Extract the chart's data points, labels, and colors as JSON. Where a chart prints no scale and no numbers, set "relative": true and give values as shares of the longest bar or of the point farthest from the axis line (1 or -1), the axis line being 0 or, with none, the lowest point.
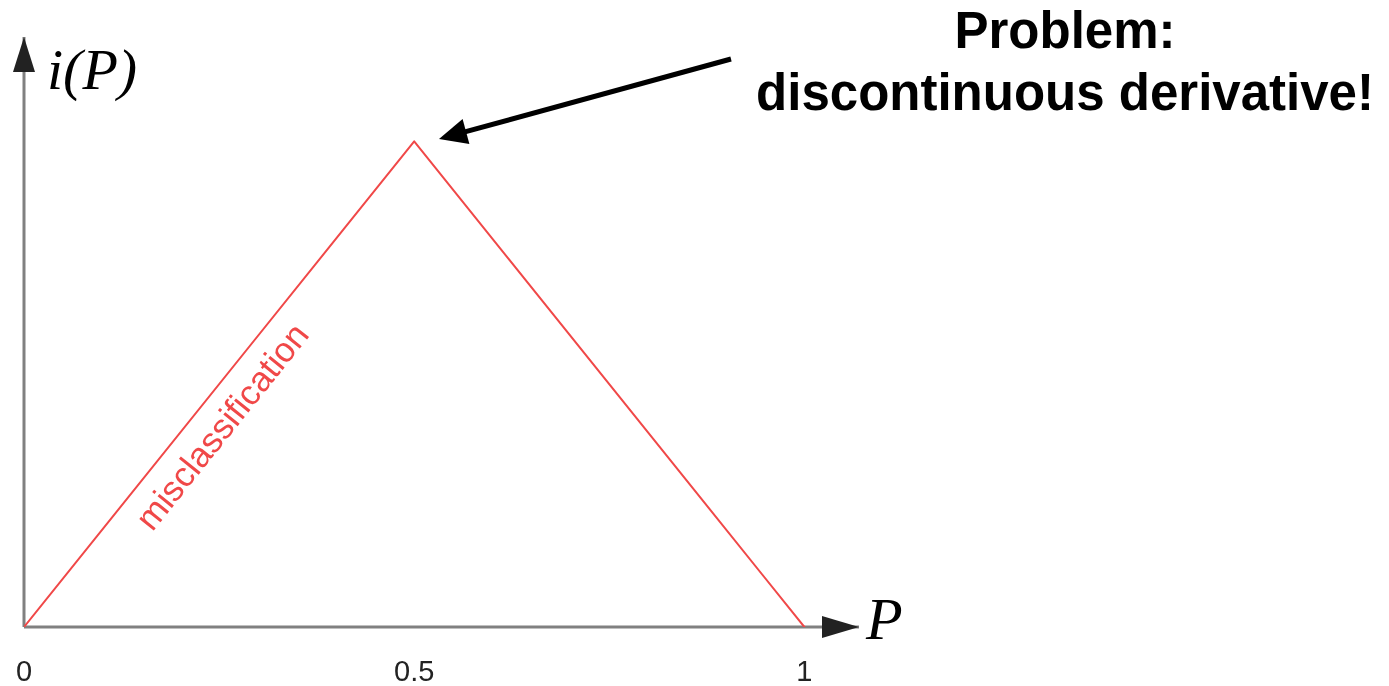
{
  "chart_data": {
    "type": "line",
    "x": [
      0,
      0.5,
      1
    ],
    "series": [
      {
        "name": "misclassification",
        "color": "#f04848",
        "values": [
          0,
          1,
          0
        ]
      }
    ],
    "relative": true,
    "xlim": [
      0,
      1.07
    ],
    "xticks": [
      0,
      0.5,
      1
    ],
    "xlabel": "P",
    "ylabel": "i(P)",
    "annotations": [
      "Problem:\ndiscontinuous derivative!"
    ]
  }
}
